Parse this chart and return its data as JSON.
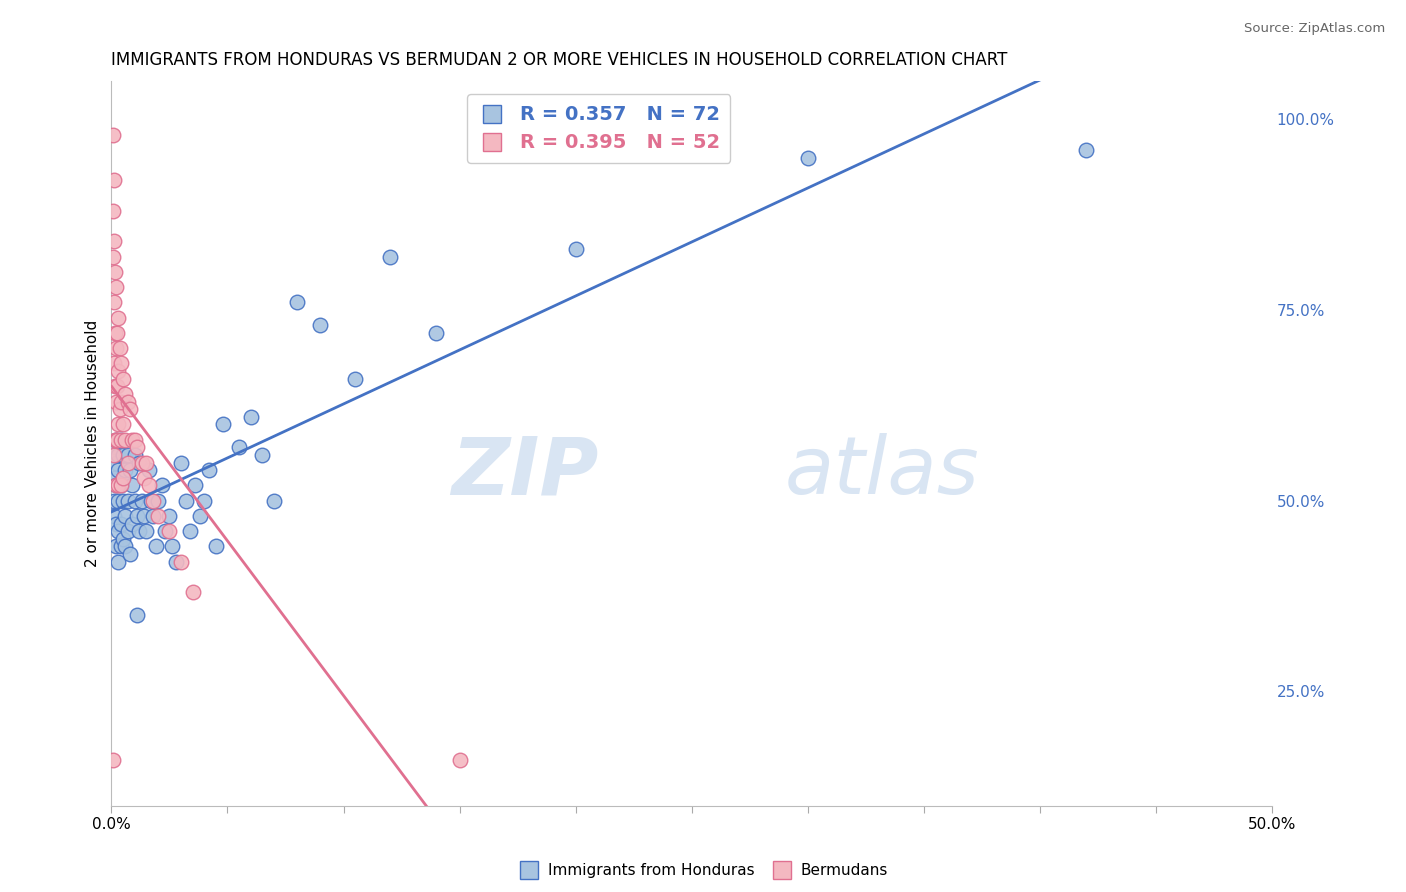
{
  "title": "IMMIGRANTS FROM HONDURAS VS BERMUDAN 2 OR MORE VEHICLES IN HOUSEHOLD CORRELATION CHART",
  "source": "Source: ZipAtlas.com",
  "ylabel": "2 or more Vehicles in Household",
  "xlim": [
    0.0,
    0.5
  ],
  "ylim": [
    0.1,
    1.05
  ],
  "blue_R": 0.357,
  "blue_N": 72,
  "pink_R": 0.395,
  "pink_N": 52,
  "blue_color": "#a8c4e0",
  "pink_color": "#f4b8c1",
  "blue_edge_color": "#4472c4",
  "pink_edge_color": "#e07090",
  "blue_line_color": "#4472c4",
  "pink_line_color": "#e07090",
  "legend_label_blue": "Immigrants from Honduras",
  "legend_label_pink": "Bermudans",
  "watermark_zip": "ZIP",
  "watermark_atlas": "atlas",
  "blue_x": [
    0.001,
    0.001,
    0.001,
    0.001,
    0.002,
    0.002,
    0.002,
    0.002,
    0.002,
    0.003,
    0.003,
    0.003,
    0.003,
    0.003,
    0.004,
    0.004,
    0.004,
    0.004,
    0.005,
    0.005,
    0.005,
    0.005,
    0.006,
    0.006,
    0.006,
    0.007,
    0.007,
    0.007,
    0.008,
    0.008,
    0.009,
    0.009,
    0.01,
    0.01,
    0.011,
    0.011,
    0.012,
    0.012,
    0.013,
    0.014,
    0.015,
    0.016,
    0.017,
    0.018,
    0.019,
    0.02,
    0.022,
    0.023,
    0.025,
    0.026,
    0.028,
    0.03,
    0.032,
    0.034,
    0.036,
    0.038,
    0.04,
    0.042,
    0.045,
    0.048,
    0.055,
    0.06,
    0.065,
    0.07,
    0.08,
    0.09,
    0.105,
    0.12,
    0.14,
    0.2,
    0.3,
    0.42
  ],
  "blue_y": [
    0.53,
    0.5,
    0.57,
    0.48,
    0.55,
    0.52,
    0.47,
    0.58,
    0.44,
    0.56,
    0.5,
    0.46,
    0.54,
    0.42,
    0.58,
    0.52,
    0.47,
    0.44,
    0.56,
    0.5,
    0.45,
    0.53,
    0.54,
    0.48,
    0.44,
    0.56,
    0.5,
    0.46,
    0.54,
    0.43,
    0.52,
    0.47,
    0.56,
    0.5,
    0.48,
    0.35,
    0.55,
    0.46,
    0.5,
    0.48,
    0.46,
    0.54,
    0.5,
    0.48,
    0.44,
    0.5,
    0.52,
    0.46,
    0.48,
    0.44,
    0.42,
    0.55,
    0.5,
    0.46,
    0.52,
    0.48,
    0.5,
    0.54,
    0.44,
    0.6,
    0.57,
    0.61,
    0.56,
    0.5,
    0.76,
    0.73,
    0.66,
    0.82,
    0.72,
    0.83,
    0.95,
    0.96
  ],
  "pink_x": [
    0.0005,
    0.0005,
    0.0005,
    0.0005,
    0.001,
    0.001,
    0.001,
    0.001,
    0.001,
    0.0015,
    0.0015,
    0.0015,
    0.0015,
    0.002,
    0.002,
    0.002,
    0.002,
    0.002,
    0.0025,
    0.0025,
    0.0025,
    0.003,
    0.003,
    0.003,
    0.003,
    0.0035,
    0.0035,
    0.004,
    0.004,
    0.004,
    0.004,
    0.005,
    0.005,
    0.005,
    0.006,
    0.006,
    0.007,
    0.007,
    0.008,
    0.009,
    0.01,
    0.011,
    0.013,
    0.014,
    0.015,
    0.016,
    0.018,
    0.02,
    0.025,
    0.03,
    0.035,
    0.15
  ],
  "pink_y": [
    0.98,
    0.88,
    0.82,
    0.16,
    0.92,
    0.84,
    0.76,
    0.68,
    0.56,
    0.8,
    0.72,
    0.65,
    0.58,
    0.78,
    0.7,
    0.63,
    0.58,
    0.52,
    0.72,
    0.65,
    0.58,
    0.74,
    0.67,
    0.6,
    0.52,
    0.7,
    0.62,
    0.68,
    0.63,
    0.58,
    0.52,
    0.66,
    0.6,
    0.53,
    0.64,
    0.58,
    0.63,
    0.55,
    0.62,
    0.58,
    0.58,
    0.57,
    0.55,
    0.53,
    0.55,
    0.52,
    0.5,
    0.48,
    0.46,
    0.42,
    0.38,
    0.16
  ],
  "right_yticks": [
    0.25,
    0.5,
    0.75,
    1.0
  ],
  "right_yticklabels": [
    "25.0%",
    "50.0%",
    "75.0%",
    "100.0%"
  ]
}
